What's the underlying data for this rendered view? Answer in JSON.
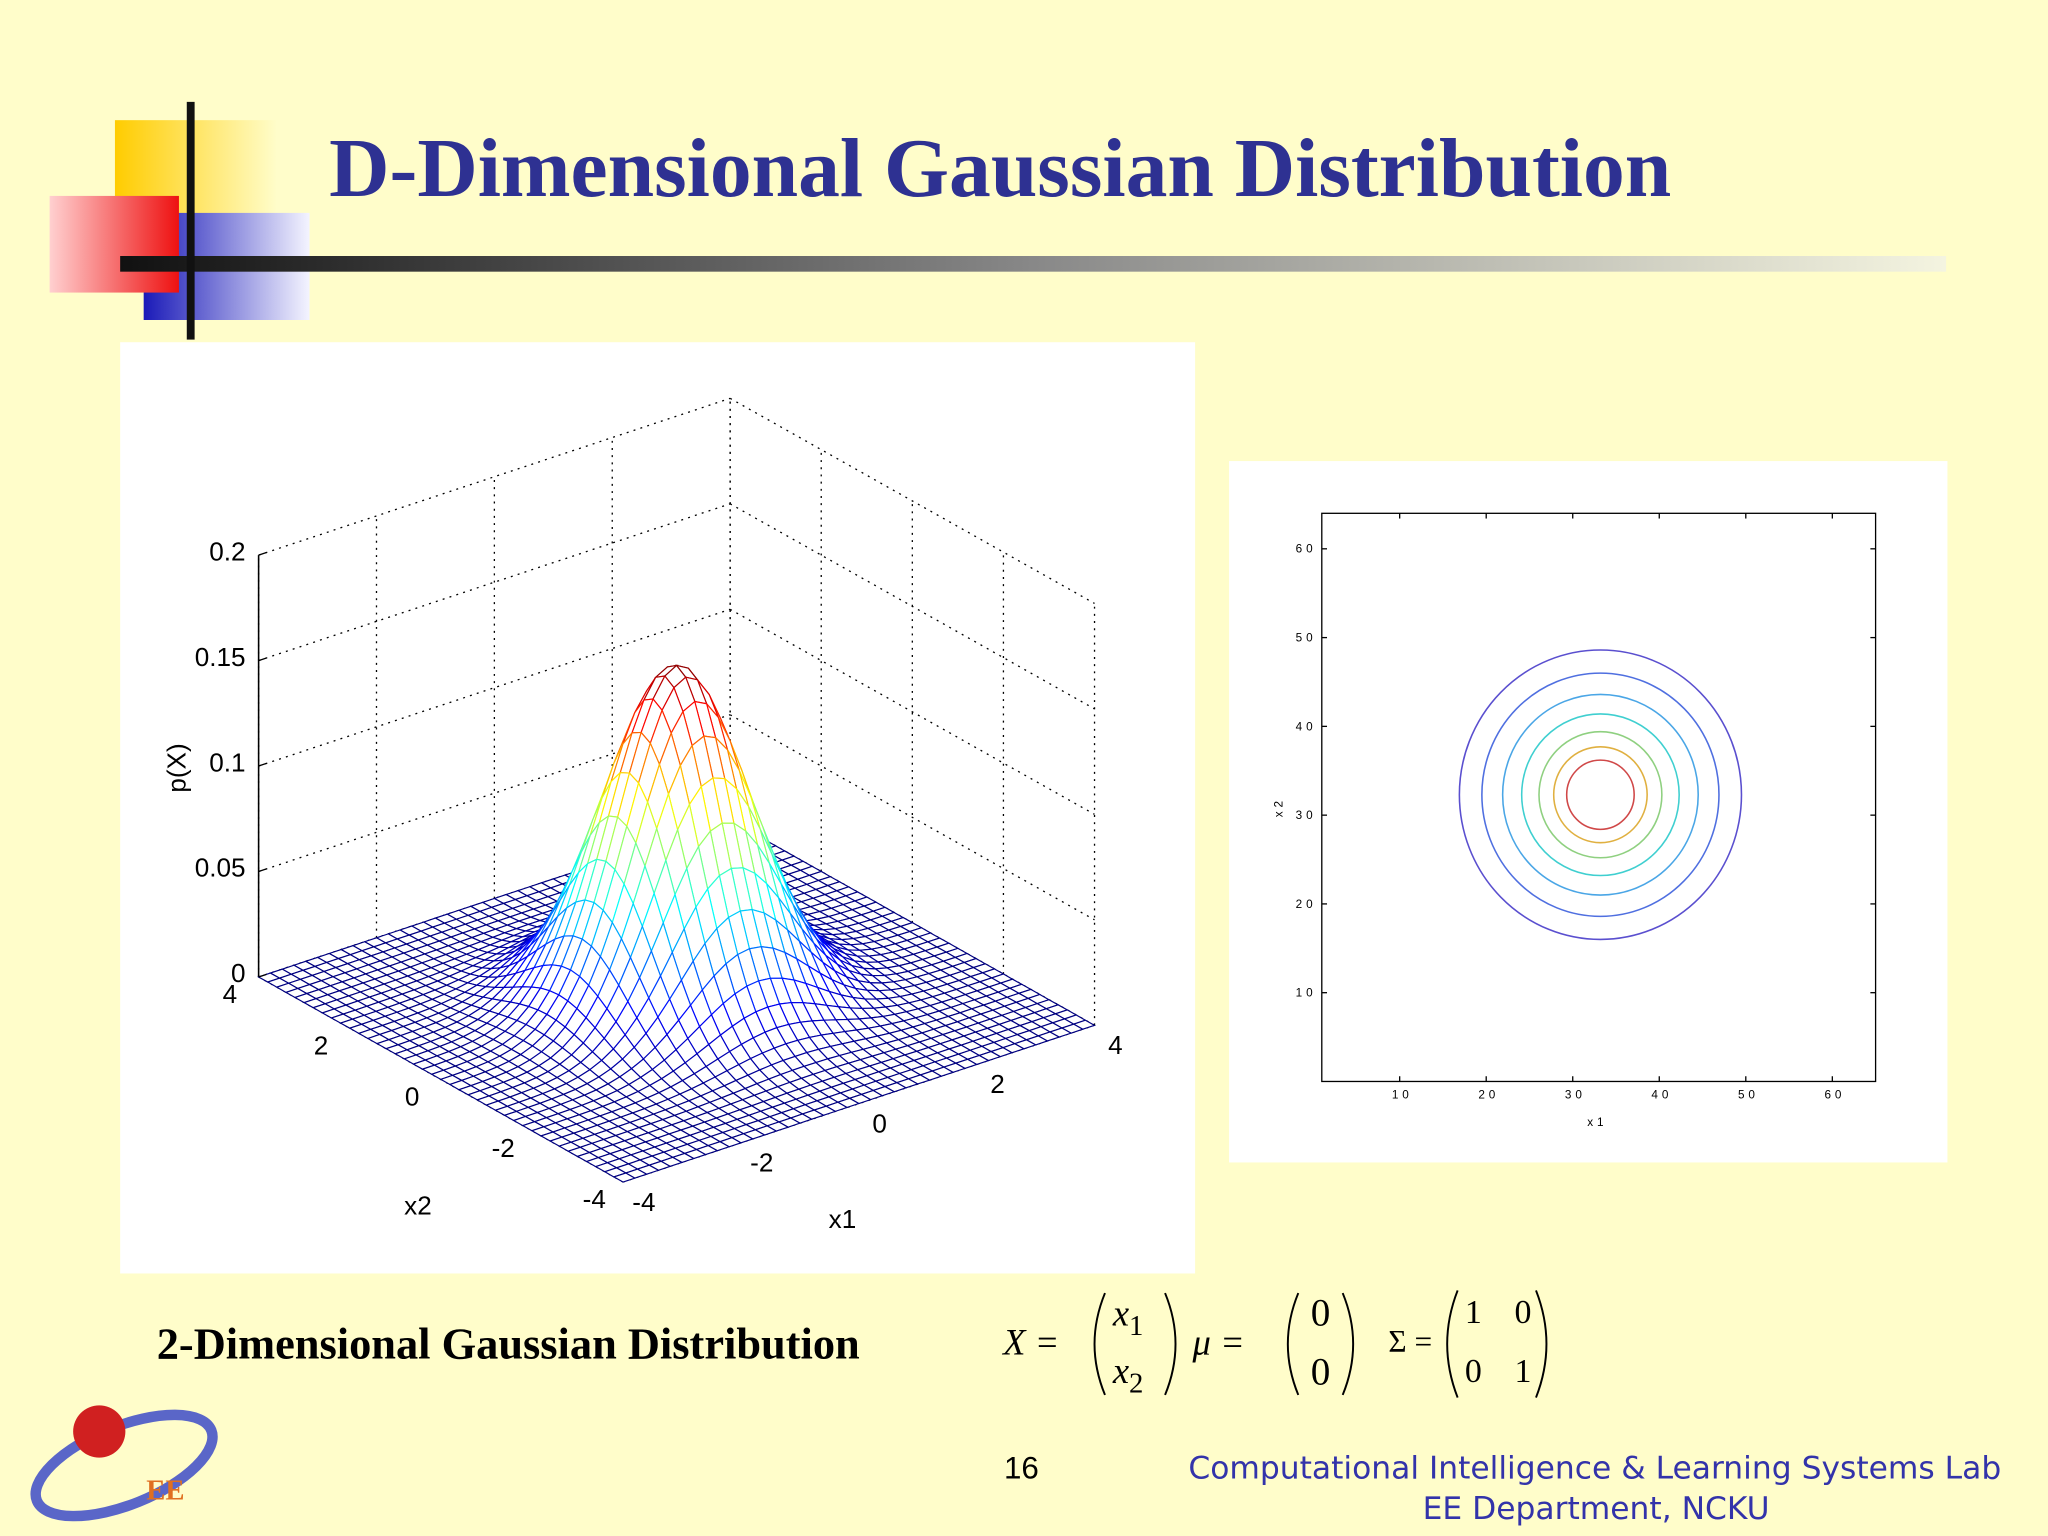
{
  "title": "D-Dimensional Gaussian Distribution",
  "surface_chart": {
    "type": "surface",
    "zlabel": "p(X)",
    "xlabel": "x1",
    "ylabel": "x2",
    "xlim": [
      -4,
      4
    ],
    "ylim": [
      -4,
      4
    ],
    "zlim": [
      0,
      0.2
    ],
    "xticks": [
      -4,
      -2,
      0,
      2,
      4
    ],
    "yticks": [
      -4,
      -2,
      0,
      2,
      4
    ],
    "zticks": [
      0,
      0.05,
      0.1,
      0.15,
      0.2
    ],
    "colormap": "jet",
    "grid": true
  },
  "contour_chart": {
    "type": "contour",
    "xlabel": "x1",
    "ylabel": "x2",
    "xlim": [
      1,
      65
    ],
    "ylim": [
      0,
      64
    ],
    "xticks": [
      10,
      20,
      30,
      40,
      50,
      60
    ],
    "yticks": [
      10,
      20,
      30,
      40,
      50,
      60
    ],
    "center": [
      33.2,
      32.3
    ],
    "radii": [
      16.3,
      13.7,
      11.3,
      9.1,
      7.1,
      5.4,
      3.9
    ],
    "colors": [
      "#5a4fcf",
      "#4f6fe0",
      "#4aa6e6",
      "#3fcfd0",
      "#8fd080",
      "#e0b040",
      "#d04848"
    ]
  },
  "caption": "2-Dimensional Gaussian Distribution",
  "formula": {
    "x_symbol": "X =",
    "x": [
      "x1",
      "x2"
    ],
    "mu_symbol": "μ =",
    "mu": [
      0,
      0
    ],
    "sigma_symbol": "Σ =",
    "sigma": [
      [
        1,
        0
      ],
      [
        0,
        1
      ]
    ]
  },
  "footer": {
    "page": 16,
    "lab": "Computational Intelligence & Learning Systems Lab",
    "department": "EE Department, NCKU",
    "logo_text": "EE"
  }
}
